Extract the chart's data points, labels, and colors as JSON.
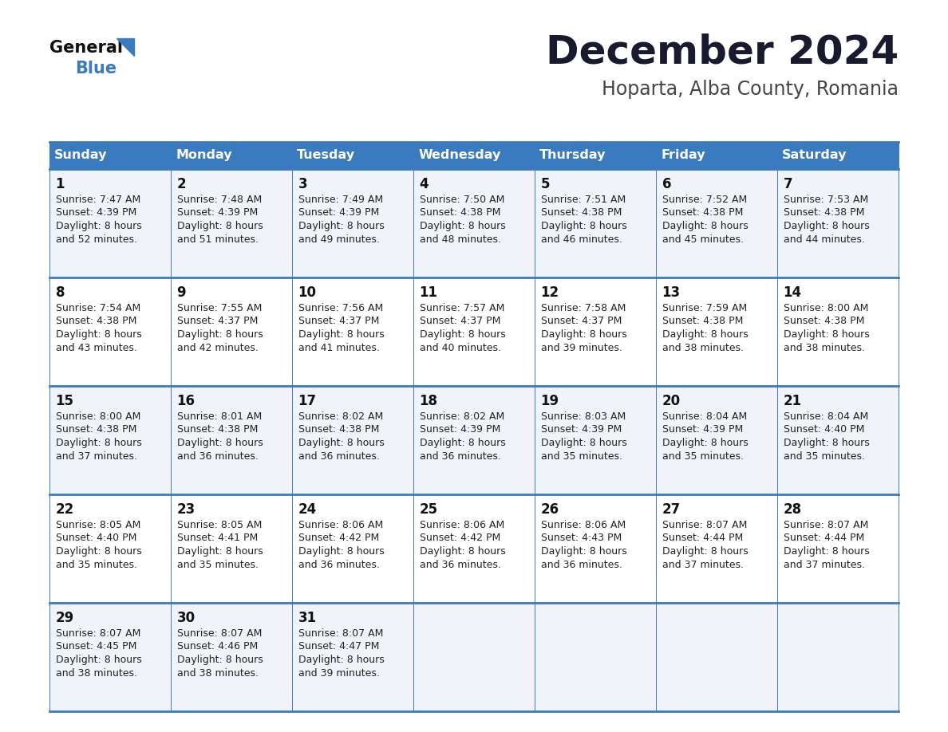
{
  "title": "December 2024",
  "subtitle": "Hoparta, Alba County, Romania",
  "header_color": "#3a7abf",
  "header_text_color": "#ffffff",
  "cell_bg_odd": "#f0f4f8",
  "cell_bg_even": "#ffffff",
  "border_color": "#3a7abf",
  "text_color": "#222222",
  "days_of_week": [
    "Sunday",
    "Monday",
    "Tuesday",
    "Wednesday",
    "Thursday",
    "Friday",
    "Saturday"
  ],
  "weeks": [
    [
      {
        "day": 1,
        "sunrise": "7:47 AM",
        "sunset": "4:39 PM",
        "daylight_line1": "8 hours",
        "daylight_line2": "and 52 minutes."
      },
      {
        "day": 2,
        "sunrise": "7:48 AM",
        "sunset": "4:39 PM",
        "daylight_line1": "8 hours",
        "daylight_line2": "and 51 minutes."
      },
      {
        "day": 3,
        "sunrise": "7:49 AM",
        "sunset": "4:39 PM",
        "daylight_line1": "8 hours",
        "daylight_line2": "and 49 minutes."
      },
      {
        "day": 4,
        "sunrise": "7:50 AM",
        "sunset": "4:38 PM",
        "daylight_line1": "8 hours",
        "daylight_line2": "and 48 minutes."
      },
      {
        "day": 5,
        "sunrise": "7:51 AM",
        "sunset": "4:38 PM",
        "daylight_line1": "8 hours",
        "daylight_line2": "and 46 minutes."
      },
      {
        "day": 6,
        "sunrise": "7:52 AM",
        "sunset": "4:38 PM",
        "daylight_line1": "8 hours",
        "daylight_line2": "and 45 minutes."
      },
      {
        "day": 7,
        "sunrise": "7:53 AM",
        "sunset": "4:38 PM",
        "daylight_line1": "8 hours",
        "daylight_line2": "and 44 minutes."
      }
    ],
    [
      {
        "day": 8,
        "sunrise": "7:54 AM",
        "sunset": "4:38 PM",
        "daylight_line1": "8 hours",
        "daylight_line2": "and 43 minutes."
      },
      {
        "day": 9,
        "sunrise": "7:55 AM",
        "sunset": "4:37 PM",
        "daylight_line1": "8 hours",
        "daylight_line2": "and 42 minutes."
      },
      {
        "day": 10,
        "sunrise": "7:56 AM",
        "sunset": "4:37 PM",
        "daylight_line1": "8 hours",
        "daylight_line2": "and 41 minutes."
      },
      {
        "day": 11,
        "sunrise": "7:57 AM",
        "sunset": "4:37 PM",
        "daylight_line1": "8 hours",
        "daylight_line2": "and 40 minutes."
      },
      {
        "day": 12,
        "sunrise": "7:58 AM",
        "sunset": "4:37 PM",
        "daylight_line1": "8 hours",
        "daylight_line2": "and 39 minutes."
      },
      {
        "day": 13,
        "sunrise": "7:59 AM",
        "sunset": "4:38 PM",
        "daylight_line1": "8 hours",
        "daylight_line2": "and 38 minutes."
      },
      {
        "day": 14,
        "sunrise": "8:00 AM",
        "sunset": "4:38 PM",
        "daylight_line1": "8 hours",
        "daylight_line2": "and 38 minutes."
      }
    ],
    [
      {
        "day": 15,
        "sunrise": "8:00 AM",
        "sunset": "4:38 PM",
        "daylight_line1": "8 hours",
        "daylight_line2": "and 37 minutes."
      },
      {
        "day": 16,
        "sunrise": "8:01 AM",
        "sunset": "4:38 PM",
        "daylight_line1": "8 hours",
        "daylight_line2": "and 36 minutes."
      },
      {
        "day": 17,
        "sunrise": "8:02 AM",
        "sunset": "4:38 PM",
        "daylight_line1": "8 hours",
        "daylight_line2": "and 36 minutes."
      },
      {
        "day": 18,
        "sunrise": "8:02 AM",
        "sunset": "4:39 PM",
        "daylight_line1": "8 hours",
        "daylight_line2": "and 36 minutes."
      },
      {
        "day": 19,
        "sunrise": "8:03 AM",
        "sunset": "4:39 PM",
        "daylight_line1": "8 hours",
        "daylight_line2": "and 35 minutes."
      },
      {
        "day": 20,
        "sunrise": "8:04 AM",
        "sunset": "4:39 PM",
        "daylight_line1": "8 hours",
        "daylight_line2": "and 35 minutes."
      },
      {
        "day": 21,
        "sunrise": "8:04 AM",
        "sunset": "4:40 PM",
        "daylight_line1": "8 hours",
        "daylight_line2": "and 35 minutes."
      }
    ],
    [
      {
        "day": 22,
        "sunrise": "8:05 AM",
        "sunset": "4:40 PM",
        "daylight_line1": "8 hours",
        "daylight_line2": "and 35 minutes."
      },
      {
        "day": 23,
        "sunrise": "8:05 AM",
        "sunset": "4:41 PM",
        "daylight_line1": "8 hours",
        "daylight_line2": "and 35 minutes."
      },
      {
        "day": 24,
        "sunrise": "8:06 AM",
        "sunset": "4:42 PM",
        "daylight_line1": "8 hours",
        "daylight_line2": "and 36 minutes."
      },
      {
        "day": 25,
        "sunrise": "8:06 AM",
        "sunset": "4:42 PM",
        "daylight_line1": "8 hours",
        "daylight_line2": "and 36 minutes."
      },
      {
        "day": 26,
        "sunrise": "8:06 AM",
        "sunset": "4:43 PM",
        "daylight_line1": "8 hours",
        "daylight_line2": "and 36 minutes."
      },
      {
        "day": 27,
        "sunrise": "8:07 AM",
        "sunset": "4:44 PM",
        "daylight_line1": "8 hours",
        "daylight_line2": "and 37 minutes."
      },
      {
        "day": 28,
        "sunrise": "8:07 AM",
        "sunset": "4:44 PM",
        "daylight_line1": "8 hours",
        "daylight_line2": "and 37 minutes."
      }
    ],
    [
      {
        "day": 29,
        "sunrise": "8:07 AM",
        "sunset": "4:45 PM",
        "daylight_line1": "8 hours",
        "daylight_line2": "and 38 minutes."
      },
      {
        "day": 30,
        "sunrise": "8:07 AM",
        "sunset": "4:46 PM",
        "daylight_line1": "8 hours",
        "daylight_line2": "and 38 minutes."
      },
      {
        "day": 31,
        "sunrise": "8:07 AM",
        "sunset": "4:47 PM",
        "daylight_line1": "8 hours",
        "daylight_line2": "and 39 minutes."
      },
      null,
      null,
      null,
      null
    ]
  ],
  "figsize": [
    11.88,
    9.18
  ],
  "dpi": 100
}
